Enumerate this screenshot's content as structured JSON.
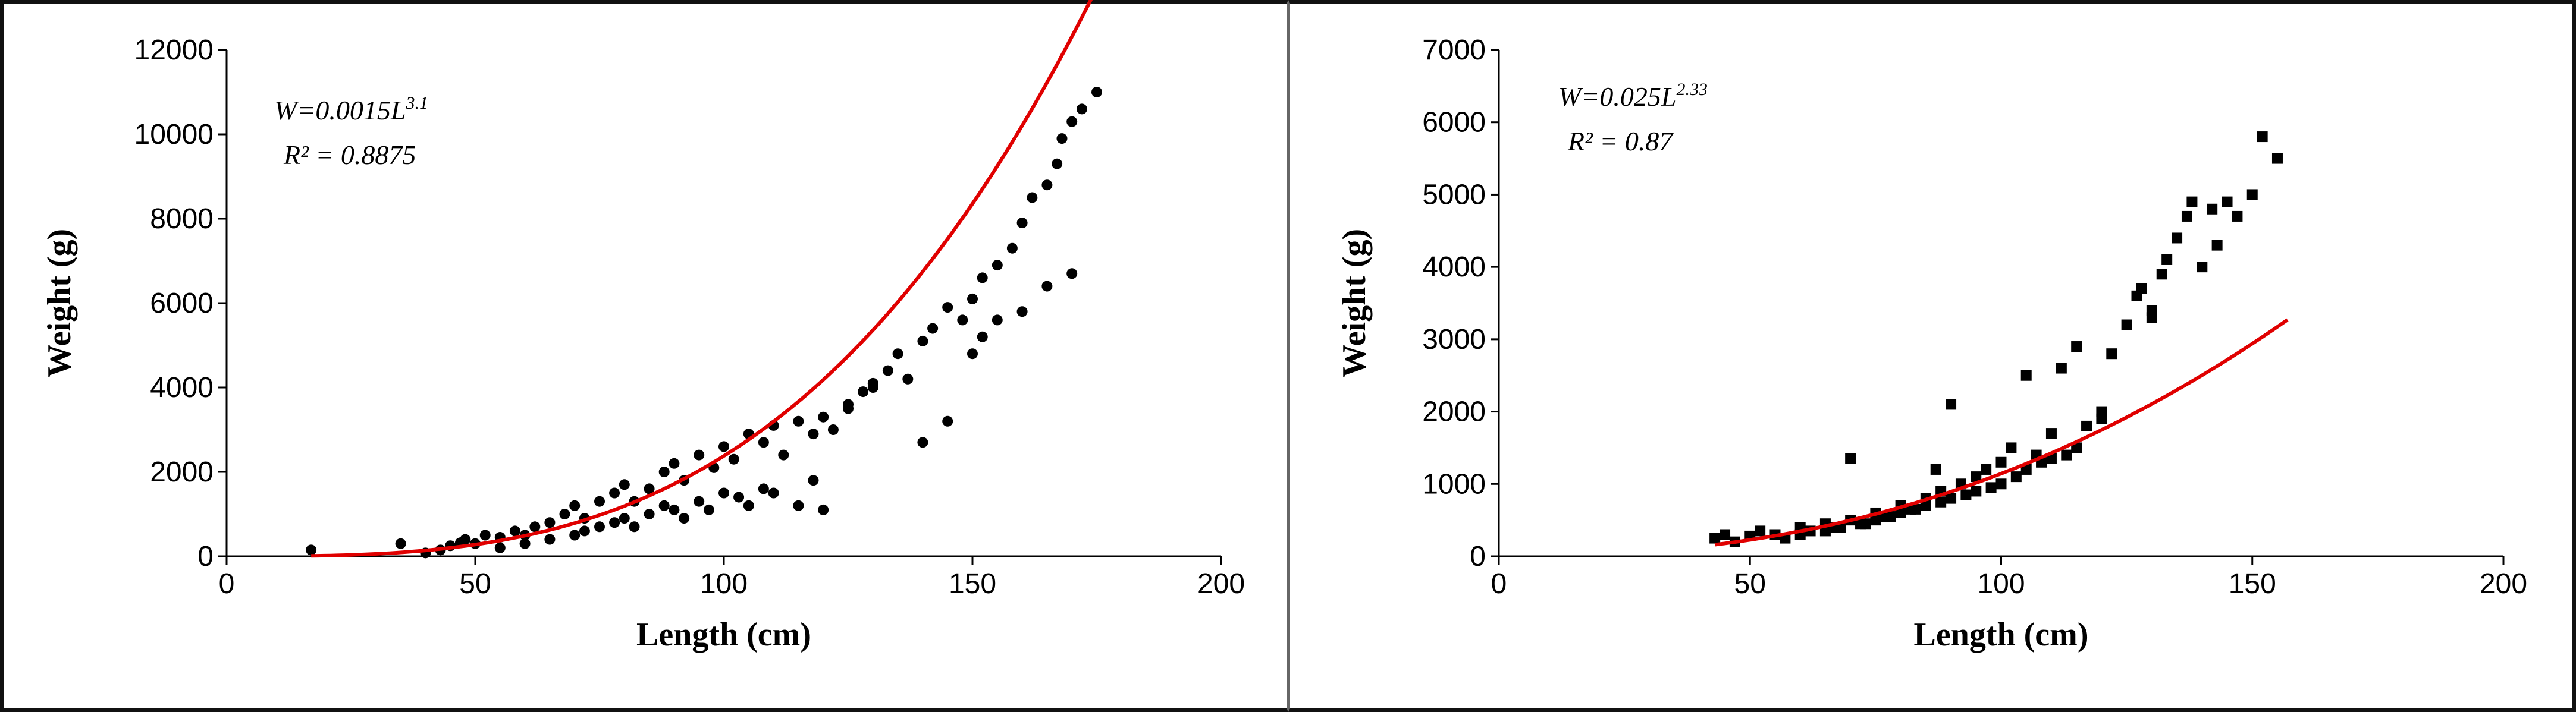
{
  "chart_data": [
    {
      "type": "scatter",
      "xlabel": "Length (cm)",
      "ylabel": "Weight (g)",
      "xlim": [
        0,
        200
      ],
      "ylim": [
        0,
        12000
      ],
      "x_ticks": [
        0,
        50,
        100,
        150,
        200
      ],
      "y_ticks": [
        0,
        2000,
        4000,
        6000,
        8000,
        10000,
        12000
      ],
      "x_tick_labels": [
        "0",
        "50",
        "100",
        "150",
        "200"
      ],
      "y_tick_labels": [
        "0",
        "2000",
        "4000",
        "6000",
        "8000",
        "10000",
        "12000"
      ],
      "grid": false,
      "marker": "circle",
      "point_color": "#000000",
      "fit_color": "#e00000",
      "equation": {
        "base": "W=0.0015L",
        "exponent": "3.1"
      },
      "r_squared": "R² = 0.8875",
      "fit": {
        "a": 0.0015,
        "b": 3.1,
        "x_range": [
          17,
          175
        ]
      },
      "x": [
        17,
        35,
        40,
        43,
        45,
        47,
        48,
        50,
        52,
        55,
        58,
        60,
        62,
        65,
        68,
        70,
        72,
        75,
        78,
        80,
        82,
        85,
        88,
        90,
        92,
        95,
        98,
        100,
        102,
        105,
        108,
        110,
        112,
        115,
        118,
        120,
        122,
        125,
        128,
        130,
        133,
        135,
        137,
        140,
        142,
        145,
        148,
        150,
        152,
        155,
        158,
        160,
        162,
        165,
        167,
        168,
        170,
        172,
        175,
        55,
        60,
        65,
        70,
        72,
        75,
        78,
        80,
        82,
        85,
        88,
        90,
        92,
        95,
        97,
        100,
        103,
        105,
        108,
        110,
        115,
        118,
        120,
        125,
        130,
        140,
        145,
        150,
        152,
        155,
        160,
        165,
        170
      ],
      "y": [
        150,
        300,
        80,
        150,
        250,
        320,
        400,
        300,
        500,
        450,
        600,
        500,
        700,
        800,
        1000,
        1200,
        900,
        1300,
        1500,
        1700,
        1300,
        1600,
        2000,
        2200,
        1800,
        2400,
        2100,
        2600,
        2300,
        2900,
        2700,
        3100,
        2400,
        3200,
        2900,
        3300,
        3000,
        3600,
        3900,
        4100,
        4400,
        4800,
        4200,
        5100,
        5400,
        5900,
        5600,
        6100,
        6600,
        6900,
        7300,
        7900,
        8500,
        8800,
        9300,
        9900,
        10300,
        10600,
        11000,
        200,
        300,
        400,
        500,
        600,
        700,
        800,
        900,
        700,
        1000,
        1200,
        1100,
        900,
        1300,
        1100,
        1500,
        1400,
        1200,
        1600,
        1500,
        1200,
        1800,
        1100,
        3500,
        4000,
        2700,
        3200,
        4800,
        5200,
        5600,
        5800,
        6400,
        6700
      ]
    },
    {
      "type": "scatter",
      "xlabel": "Length (cm)",
      "ylabel": "Weight (g)",
      "xlim": [
        0,
        200
      ],
      "ylim": [
        0,
        7000
      ],
      "x_ticks": [
        0,
        50,
        100,
        150,
        200
      ],
      "y_ticks": [
        0,
        1000,
        2000,
        3000,
        4000,
        5000,
        6000,
        7000
      ],
      "x_tick_labels": [
        "0",
        "50",
        "100",
        "150",
        "200"
      ],
      "y_tick_labels": [
        "0",
        "1000",
        "2000",
        "3000",
        "4000",
        "5000",
        "6000",
        "7000"
      ],
      "grid": false,
      "marker": "square",
      "point_color": "#000000",
      "fit_color": "#e00000",
      "equation": {
        "base": "W=0.025L",
        "exponent": "2.33"
      },
      "r_squared": "R² = 0.87",
      "fit": {
        "a": 0.025,
        "b": 2.33,
        "x_range": [
          43,
          157
        ]
      },
      "x": [
        43,
        45,
        47,
        50,
        52,
        55,
        57,
        60,
        62,
        65,
        67,
        70,
        72,
        75,
        77,
        80,
        82,
        85,
        87,
        88,
        90,
        92,
        95,
        97,
        100,
        102,
        105,
        107,
        110,
        112,
        115,
        117,
        120,
        122,
        125,
        127,
        130,
        132,
        135,
        137,
        140,
        142,
        145,
        150,
        152,
        155,
        60,
        65,
        68,
        70,
        73,
        75,
        78,
        80,
        83,
        85,
        88,
        90,
        93,
        95,
        98,
        100,
        103,
        105,
        108,
        110,
        113,
        115,
        120,
        128,
        130,
        133,
        138,
        143,
        147
      ],
      "y": [
        250,
        300,
        200,
        280,
        350,
        300,
        250,
        400,
        350,
        450,
        400,
        500,
        450,
        600,
        550,
        700,
        650,
        800,
        1200,
        900,
        2100,
        1000,
        1100,
        1200,
        1300,
        1500,
        2500,
        1400,
        1700,
        2600,
        2900,
        1800,
        1900,
        2800,
        3200,
        3600,
        3400,
        3900,
        4400,
        4700,
        4000,
        4800,
        4900,
        5000,
        5800,
        5500,
        300,
        350,
        400,
        1350,
        450,
        500,
        550,
        600,
        650,
        700,
        750,
        800,
        850,
        900,
        950,
        1000,
        1100,
        1200,
        1300,
        1350,
        1400,
        1500,
        2000,
        3700,
        3300,
        4100,
        4900,
        4300,
        4700
      ]
    }
  ]
}
